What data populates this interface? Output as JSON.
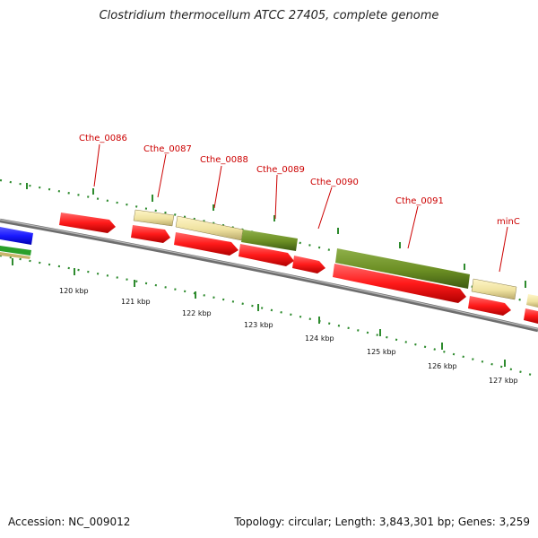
{
  "header": {
    "title": "Clostridium thermocellum ATCC 27405, complete genome"
  },
  "footer": {
    "accession": "Accession: NC_009012",
    "summary": "Topology: circular; Length: 3,843,301 bp; Genes: 3,259"
  },
  "map": {
    "gene_labels": [
      "Cthe_0086",
      "Cthe_0087",
      "Cthe_0088",
      "Cthe_0089",
      "Cthe_0090",
      "Cthe_0091",
      "minC"
    ],
    "scale_labels": [
      "120 kbp",
      "121 kbp",
      "122 kbp",
      "123 kbp",
      "124 kbp",
      "125 kbp",
      "126 kbp",
      "127 kbp"
    ],
    "colors": {
      "cds": "#ff1a1a",
      "pale_feature": "#f2e6a6",
      "olive_feature": "#6b8e23",
      "blue_feature": "#1a1aff",
      "green_feature": "#2aa02a",
      "label_red": "#cc0000",
      "tick_green": "#2e8b2e",
      "backbone": "#808080"
    }
  }
}
